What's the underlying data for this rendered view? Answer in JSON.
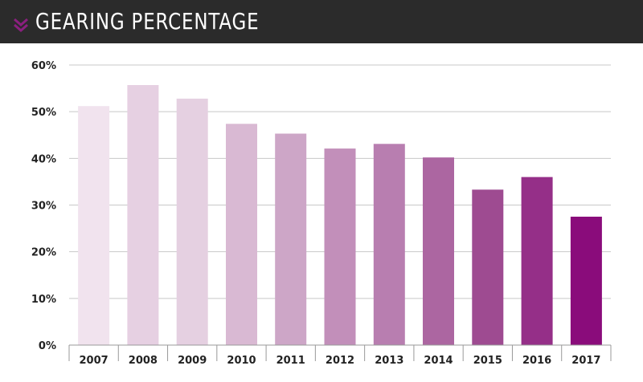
{
  "header": {
    "title": "GEARING PERCENTAGE",
    "icon": "double-chevron-down-icon",
    "background": "#2b2b2b",
    "icon_color": "#8b1f7f"
  },
  "chart_data": {
    "type": "bar",
    "title": "GEARING PERCENTAGE",
    "xlabel": "",
    "ylabel": "",
    "categories": [
      "2007",
      "2008",
      "2009",
      "2010",
      "2011",
      "2012",
      "2013",
      "2014",
      "2015",
      "2016",
      "2017"
    ],
    "values": [
      51.2,
      55.7,
      52.8,
      47.4,
      45.3,
      42.1,
      43.1,
      40.2,
      33.3,
      36.0,
      27.5
    ],
    "ylim": [
      0,
      60
    ],
    "yticks": [
      0,
      10,
      20,
      30,
      40,
      50,
      60
    ],
    "ytick_labels": [
      "0%",
      "10%",
      "20%",
      "30%",
      "40%",
      "50%",
      "60%"
    ],
    "grid": true,
    "legend": "none",
    "bar_colors": [
      "#f1e3ee",
      "#e6d0e2",
      "#e5d0e1",
      "#d9b9d3",
      "#cda6c7",
      "#c28fba",
      "#b87eb0",
      "#ac66a1",
      "#9e4b91",
      "#952f88",
      "#8a0c7b"
    ]
  }
}
